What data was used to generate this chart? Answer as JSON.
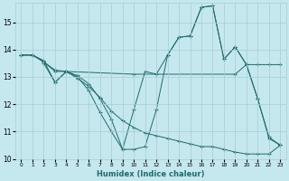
{
  "xlabel": "Humidex (Indice chaleur)",
  "ylabel": "",
  "xlim": [
    -0.5,
    23.5
  ],
  "ylim": [
    10,
    15.7
  ],
  "yticks": [
    10,
    11,
    12,
    13,
    14,
    15
  ],
  "xticks": [
    0,
    1,
    2,
    3,
    4,
    5,
    6,
    7,
    8,
    9,
    10,
    11,
    12,
    13,
    14,
    15,
    16,
    17,
    18,
    19,
    20,
    21,
    22,
    23
  ],
  "bg_color": "#c5e8ef",
  "line_color": "#1e6b6b",
  "lines": [
    {
      "x": [
        0,
        1,
        2,
        3,
        4,
        5,
        6,
        7,
        8,
        9,
        10,
        11,
        12,
        13,
        14,
        15,
        16,
        17,
        18,
        19,
        20,
        21,
        22,
        23
      ],
      "y": [
        13.8,
        13.8,
        13.6,
        12.8,
        13.2,
        13.05,
        12.75,
        12.2,
        11.45,
        10.35,
        10.35,
        10.45,
        11.8,
        13.8,
        14.45,
        14.5,
        15.55,
        15.6,
        13.65,
        14.1,
        13.45,
        12.2,
        10.8,
        10.5
      ]
    },
    {
      "x": [
        0,
        1,
        2,
        3,
        4,
        10,
        19,
        20,
        21,
        22,
        23
      ],
      "y": [
        13.8,
        13.8,
        13.55,
        13.25,
        13.2,
        13.1,
        13.1,
        13.45,
        13.45,
        13.45,
        13.45
      ]
    },
    {
      "x": [
        0,
        1,
        2,
        3,
        4,
        5,
        6,
        7,
        8,
        9,
        10,
        11,
        12,
        13,
        14,
        15,
        16,
        17,
        18,
        19,
        20,
        21,
        22,
        23
      ],
      "y": [
        13.8,
        13.8,
        13.55,
        13.2,
        13.2,
        12.95,
        12.65,
        12.25,
        11.75,
        11.4,
        11.15,
        10.95,
        10.85,
        10.75,
        10.65,
        10.55,
        10.45,
        10.45,
        10.35,
        10.25,
        10.18,
        10.18,
        10.18,
        10.5
      ]
    },
    {
      "x": [
        2,
        3,
        4,
        5,
        6,
        7,
        8,
        9,
        10,
        11,
        12,
        13,
        14,
        15,
        16,
        17,
        18,
        19,
        20,
        21,
        22,
        23
      ],
      "y": [
        13.5,
        12.8,
        13.2,
        13.0,
        12.5,
        11.7,
        11.0,
        10.35,
        11.8,
        13.2,
        13.1,
        13.8,
        14.45,
        14.5,
        15.55,
        15.6,
        13.65,
        14.1,
        13.45,
        12.2,
        10.75,
        10.5
      ]
    }
  ],
  "grid_color": "#a8ccd4",
  "marker": "+"
}
